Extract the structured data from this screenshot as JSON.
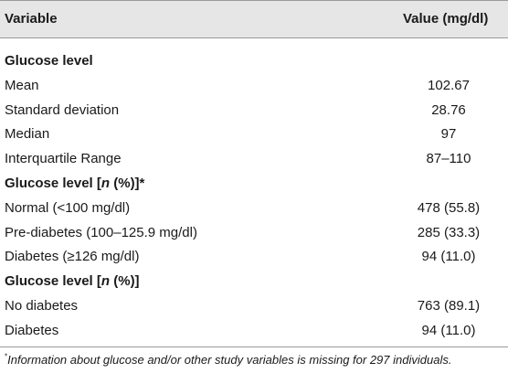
{
  "table": {
    "headers": {
      "variable": "Variable",
      "value": "Value (mg/dl)"
    },
    "sections": [
      {
        "title_pre": "Glucose level",
        "title_ital": "",
        "title_post": "",
        "rows": [
          {
            "label": "Mean",
            "value": "102.67"
          },
          {
            "label": "Standard deviation",
            "value": "28.76"
          },
          {
            "label": "Median",
            "value": "97"
          },
          {
            "label": "Interquartile Range",
            "value": "87–110"
          }
        ]
      },
      {
        "title_pre": "Glucose level [",
        "title_ital": "n",
        "title_post": " (%)]*",
        "rows": [
          {
            "label": "Normal (<100 mg/dl)",
            "value": "478 (55.8)"
          },
          {
            "label": "Pre-diabetes (100–125.9 mg/dl)",
            "value": "285 (33.3)"
          },
          {
            "label": "Diabetes (≥126 mg/dl)",
            "value": "94 (11.0)"
          }
        ]
      },
      {
        "title_pre": "Glucose level [",
        "title_ital": "n",
        "title_post": " (%)]",
        "rows": [
          {
            "label": "No diabetes",
            "value": "763 (89.1)"
          },
          {
            "label": "Diabetes",
            "value": "94 (11.0)"
          }
        ]
      }
    ],
    "footnote": {
      "marker": "*",
      "text": "Information about glucose and/or other study variables is missing for 297 individuals."
    }
  }
}
